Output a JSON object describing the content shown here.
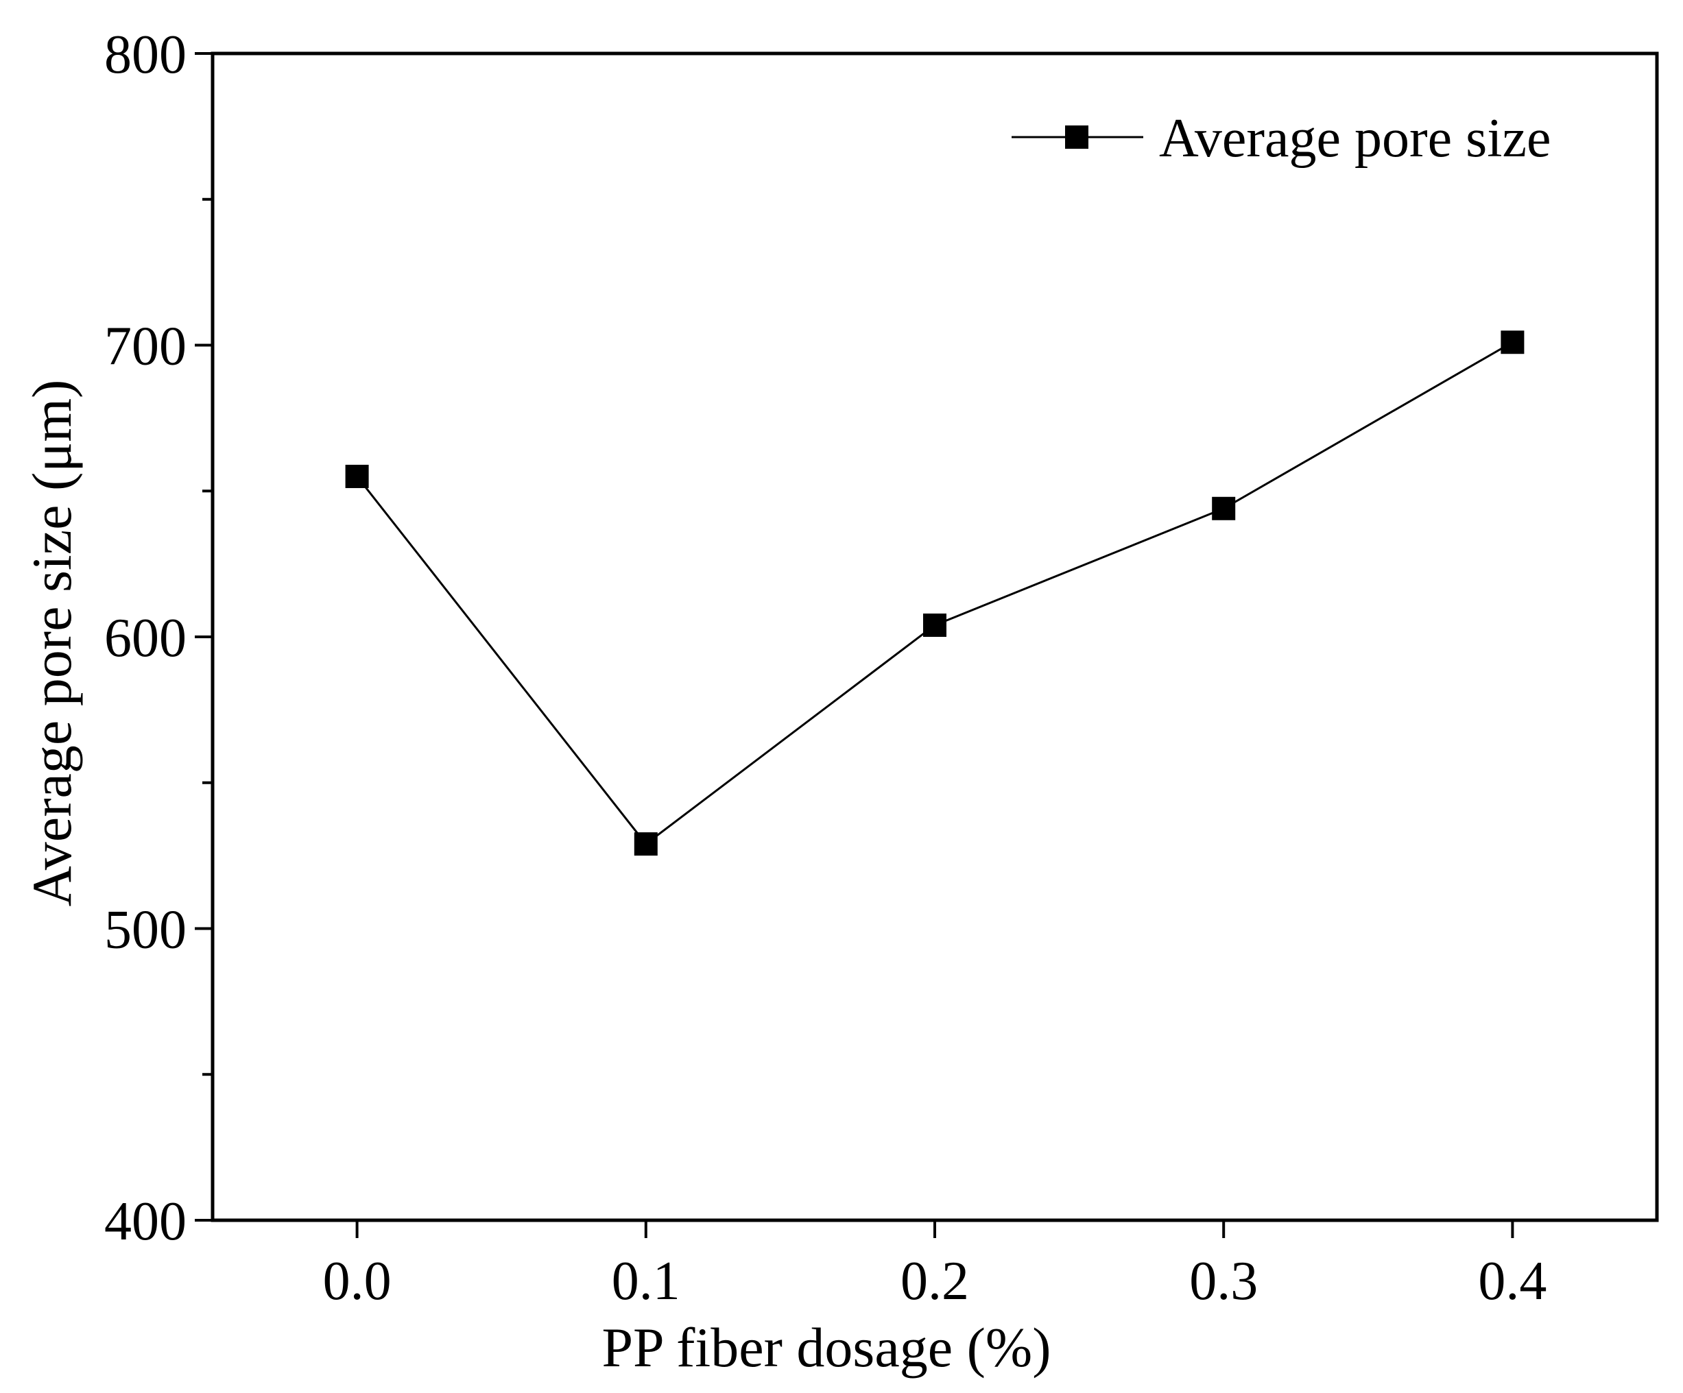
{
  "chart_data": {
    "type": "line",
    "title": "",
    "xlabel": "PP fiber dosage (%)",
    "ylabel": "Average pore size (μm)",
    "xlim": [
      -0.05,
      0.45
    ],
    "ylim": [
      400,
      800
    ],
    "xticks": [
      0.0,
      0.1,
      0.2,
      0.3,
      0.4
    ],
    "xtick_labels": [
      "0.0",
      "0.1",
      "0.2",
      "0.3",
      "0.4"
    ],
    "yticks": [
      400,
      500,
      600,
      700,
      800
    ],
    "ytick_labels": [
      "400",
      "500",
      "600",
      "700",
      "800"
    ],
    "y_minor_ticks": [
      450,
      550,
      650,
      750
    ],
    "grid": false,
    "legend_position": "top-right",
    "series": [
      {
        "name": "Average pore size",
        "marker": "square",
        "color": "#000000",
        "x": [
          0.0,
          0.1,
          0.2,
          0.3,
          0.4
        ],
        "values": [
          655,
          529,
          604,
          644,
          701
        ]
      }
    ]
  }
}
